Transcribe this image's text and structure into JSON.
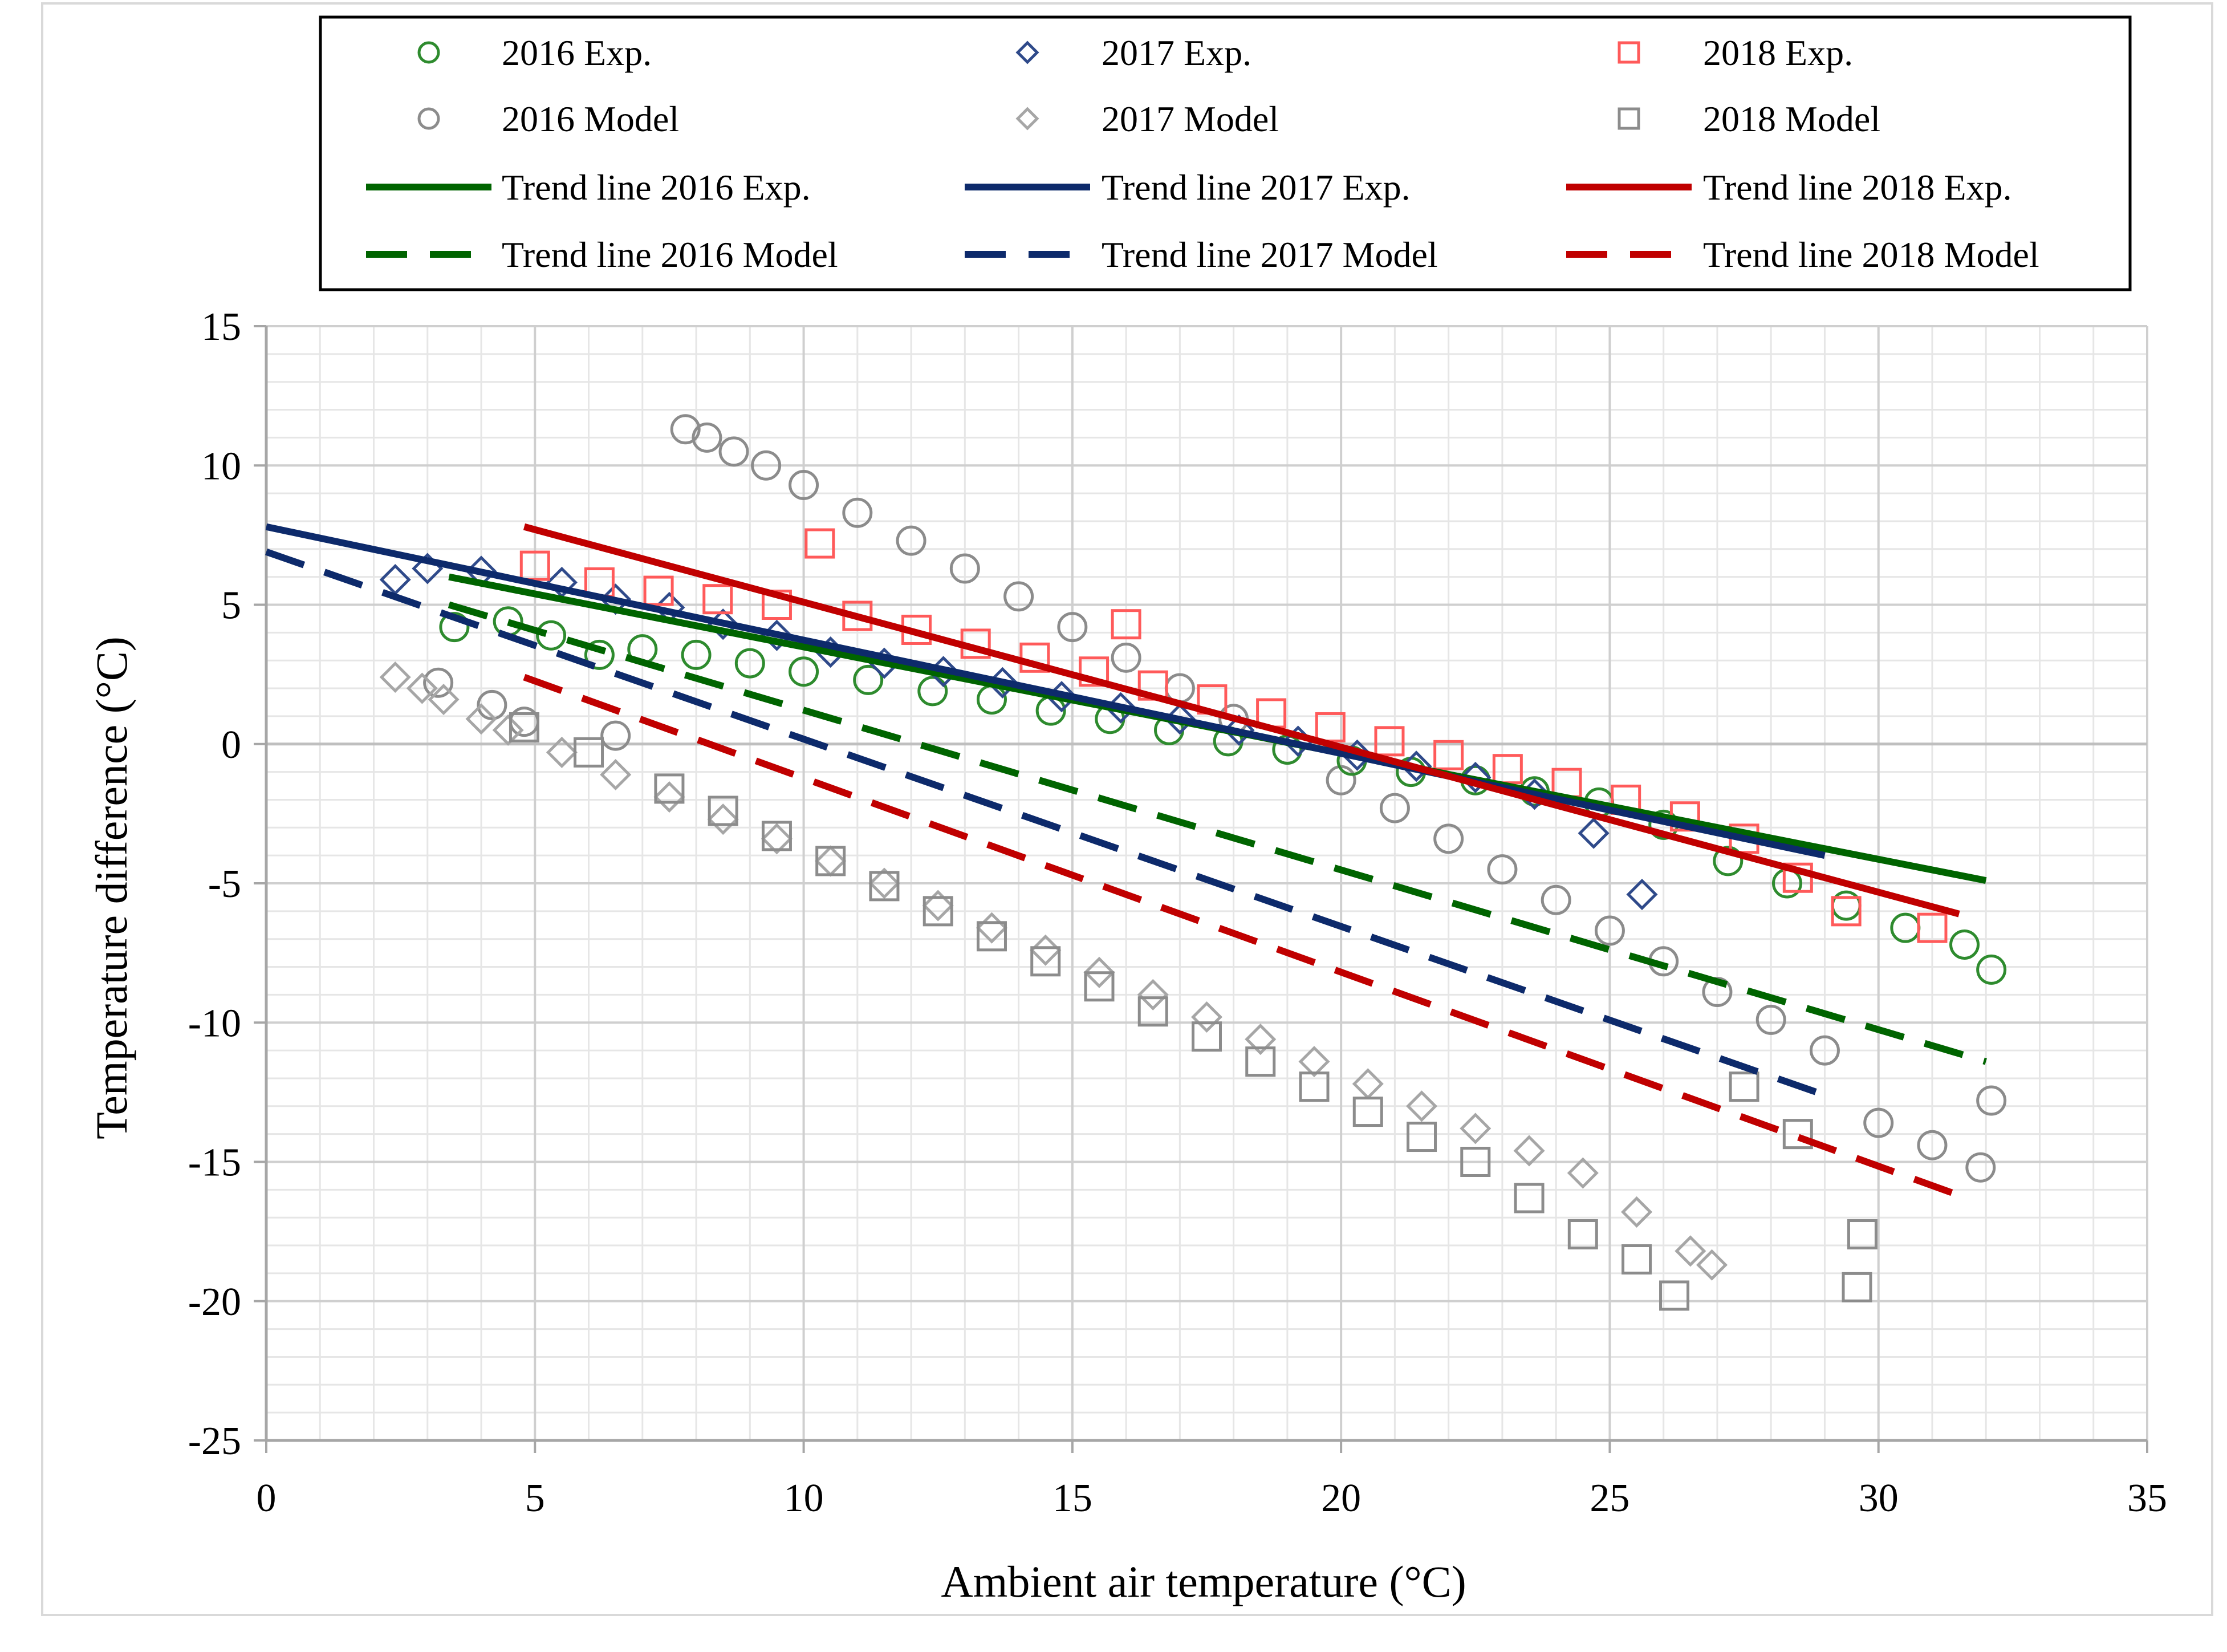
{
  "chart_data": {
    "type": "scatter",
    "title": "",
    "xlabel": "Ambient air temperature (°C)",
    "ylabel": "Temperature difference (°C)",
    "xlim": [
      0,
      35
    ],
    "ylim": [
      -25,
      15
    ],
    "x_ticks": [
      0,
      5,
      10,
      15,
      20,
      25,
      30,
      35
    ],
    "y_ticks": [
      15,
      10,
      5,
      0,
      -5,
      -10,
      -15,
      -20,
      -25
    ],
    "x_tick_labels": [
      "0",
      "5",
      "10",
      "15",
      "20",
      "25",
      "30",
      "35"
    ],
    "y_tick_labels": [
      "15",
      "10",
      "5",
      "0",
      "-5",
      "-10",
      "-15",
      "-20",
      "-25"
    ],
    "grid": true,
    "legend_position": "top",
    "series": [
      {
        "name": "2016 Exp.",
        "marker": "circle",
        "color": "#2e8b2e",
        "points": [
          [
            3.5,
            4.2
          ],
          [
            4.5,
            4.4
          ],
          [
            5.3,
            3.9
          ],
          [
            6.2,
            3.2
          ],
          [
            7.0,
            3.4
          ],
          [
            8.0,
            3.2
          ],
          [
            9.0,
            2.9
          ],
          [
            10.0,
            2.6
          ],
          [
            11.2,
            2.3
          ],
          [
            12.4,
            1.9
          ],
          [
            13.5,
            1.6
          ],
          [
            14.6,
            1.2
          ],
          [
            15.7,
            0.9
          ],
          [
            16.8,
            0.5
          ],
          [
            17.9,
            0.1
          ],
          [
            19.0,
            -0.2
          ],
          [
            20.2,
            -0.6
          ],
          [
            21.3,
            -1.0
          ],
          [
            22.5,
            -1.3
          ],
          [
            23.6,
            -1.7
          ],
          [
            24.8,
            -2.1
          ],
          [
            26.0,
            -2.9
          ],
          [
            27.2,
            -4.2
          ],
          [
            28.3,
            -5.0
          ],
          [
            29.4,
            -5.8
          ],
          [
            30.5,
            -6.6
          ],
          [
            31.6,
            -7.2
          ],
          [
            32.1,
            -8.1
          ]
        ]
      },
      {
        "name": "2017 Exp.",
        "marker": "diamond",
        "color": "#2f4a8a",
        "points": [
          [
            2.4,
            5.9
          ],
          [
            3.0,
            6.3
          ],
          [
            4.0,
            6.2
          ],
          [
            5.5,
            5.8
          ],
          [
            6.5,
            5.2
          ],
          [
            7.5,
            4.9
          ],
          [
            8.5,
            4.3
          ],
          [
            9.5,
            3.9
          ],
          [
            10.5,
            3.3
          ],
          [
            11.5,
            2.9
          ],
          [
            12.6,
            2.6
          ],
          [
            13.7,
            2.2
          ],
          [
            14.8,
            1.7
          ],
          [
            15.9,
            1.3
          ],
          [
            17.0,
            0.9
          ],
          [
            18.1,
            0.5
          ],
          [
            19.2,
            0.1
          ],
          [
            20.3,
            -0.4
          ],
          [
            21.4,
            -0.8
          ],
          [
            22.5,
            -1.2
          ],
          [
            23.6,
            -1.8
          ],
          [
            24.7,
            -3.2
          ],
          [
            25.6,
            -5.4
          ]
        ]
      },
      {
        "name": "2018 Exp.",
        "marker": "square",
        "color": "#ff5a5a",
        "points": [
          [
            5.0,
            6.4
          ],
          [
            6.2,
            5.8
          ],
          [
            7.3,
            5.5
          ],
          [
            8.4,
            5.2
          ],
          [
            9.5,
            5.0
          ],
          [
            10.3,
            7.2
          ],
          [
            11.0,
            4.6
          ],
          [
            12.1,
            4.1
          ],
          [
            13.2,
            3.6
          ],
          [
            14.3,
            3.1
          ],
          [
            15.4,
            2.6
          ],
          [
            16.0,
            4.3
          ],
          [
            16.5,
            2.1
          ],
          [
            17.6,
            1.6
          ],
          [
            18.7,
            1.1
          ],
          [
            19.8,
            0.6
          ],
          [
            20.9,
            0.1
          ],
          [
            22.0,
            -0.4
          ],
          [
            23.1,
            -0.9
          ],
          [
            24.2,
            -1.4
          ],
          [
            25.3,
            -2.0
          ],
          [
            26.4,
            -2.6
          ],
          [
            27.5,
            -3.4
          ],
          [
            28.5,
            -4.8
          ],
          [
            29.4,
            -6.0
          ],
          [
            31.0,
            -6.6
          ]
        ]
      },
      {
        "name": "2016 Model",
        "marker": "circle",
        "color": "#8c8c8c",
        "points": [
          [
            3.2,
            2.2
          ],
          [
            4.2,
            1.4
          ],
          [
            4.8,
            0.8
          ],
          [
            6.5,
            0.3
          ],
          [
            7.8,
            11.3
          ],
          [
            8.2,
            11.0
          ],
          [
            8.7,
            10.5
          ],
          [
            9.3,
            10.0
          ],
          [
            10.0,
            9.3
          ],
          [
            11.0,
            8.3
          ],
          [
            12.0,
            7.3
          ],
          [
            13.0,
            6.3
          ],
          [
            14.0,
            5.3
          ],
          [
            15.0,
            4.2
          ],
          [
            16.0,
            3.1
          ],
          [
            17.0,
            2.0
          ],
          [
            18.0,
            0.9
          ],
          [
            19.0,
            -0.2
          ],
          [
            20.0,
            -1.3
          ],
          [
            21.0,
            -2.3
          ],
          [
            22.0,
            -3.4
          ],
          [
            23.0,
            -4.5
          ],
          [
            24.0,
            -5.6
          ],
          [
            25.0,
            -6.7
          ],
          [
            26.0,
            -7.8
          ],
          [
            27.0,
            -8.9
          ],
          [
            28.0,
            -9.9
          ],
          [
            29.0,
            -11.0
          ],
          [
            30.0,
            -13.6
          ],
          [
            31.0,
            -14.4
          ],
          [
            31.9,
            -15.2
          ],
          [
            32.1,
            -12.8
          ]
        ]
      },
      {
        "name": "2017 Model",
        "marker": "diamond",
        "color": "#a6a6a6",
        "points": [
          [
            2.4,
            2.4
          ],
          [
            2.9,
            2.0
          ],
          [
            3.3,
            1.6
          ],
          [
            4.0,
            0.9
          ],
          [
            4.5,
            0.5
          ],
          [
            5.5,
            -0.3
          ],
          [
            6.5,
            -1.1
          ],
          [
            7.5,
            -1.9
          ],
          [
            8.5,
            -2.7
          ],
          [
            9.5,
            -3.4
          ],
          [
            10.5,
            -4.2
          ],
          [
            11.5,
            -5.0
          ],
          [
            12.5,
            -5.8
          ],
          [
            13.5,
            -6.6
          ],
          [
            14.5,
            -7.4
          ],
          [
            15.5,
            -8.2
          ],
          [
            16.5,
            -9.0
          ],
          [
            17.5,
            -9.8
          ],
          [
            18.5,
            -10.6
          ],
          [
            19.5,
            -11.4
          ],
          [
            20.5,
            -12.2
          ],
          [
            21.5,
            -13.0
          ],
          [
            22.5,
            -13.8
          ],
          [
            23.5,
            -14.6
          ],
          [
            24.5,
            -15.4
          ],
          [
            25.5,
            -16.8
          ],
          [
            26.5,
            -18.2
          ],
          [
            26.9,
            -18.7
          ]
        ]
      },
      {
        "name": "2018 Model",
        "marker": "square",
        "color": "#8c8c8c",
        "points": [
          [
            4.8,
            0.6
          ],
          [
            6.0,
            -0.3
          ],
          [
            7.5,
            -1.6
          ],
          [
            8.5,
            -2.4
          ],
          [
            9.5,
            -3.3
          ],
          [
            10.5,
            -4.2
          ],
          [
            11.5,
            -5.1
          ],
          [
            12.5,
            -6.0
          ],
          [
            13.5,
            -6.9
          ],
          [
            14.5,
            -7.8
          ],
          [
            15.5,
            -8.7
          ],
          [
            16.5,
            -9.6
          ],
          [
            17.5,
            -10.5
          ],
          [
            18.5,
            -11.4
          ],
          [
            19.5,
            -12.3
          ],
          [
            20.5,
            -13.2
          ],
          [
            21.5,
            -14.1
          ],
          [
            22.5,
            -15.0
          ],
          [
            23.5,
            -16.3
          ],
          [
            24.5,
            -17.6
          ],
          [
            25.5,
            -18.5
          ],
          [
            26.2,
            -19.8
          ],
          [
            27.5,
            -12.3
          ],
          [
            28.5,
            -14.0
          ],
          [
            29.6,
            -19.5
          ],
          [
            29.7,
            -17.6
          ]
        ]
      }
    ],
    "trend_lines": [
      {
        "name": "Trend line 2016 Exp.",
        "color": "#006400",
        "dash": false,
        "x": [
          3.4,
          32.0
        ],
        "y": [
          6.0,
          -4.9
        ]
      },
      {
        "name": "Trend line 2017 Exp.",
        "color": "#0d2a6b",
        "dash": false,
        "x": [
          0.0,
          29.0
        ],
        "y": [
          7.8,
          -4.0
        ]
      },
      {
        "name": "Trend line 2018 Exp.",
        "color": "#c00000",
        "dash": false,
        "x": [
          4.8,
          31.5
        ],
        "y": [
          7.8,
          -6.1
        ]
      },
      {
        "name": "Trend line 2016 Model",
        "color": "#006400",
        "dash": true,
        "x": [
          3.4,
          32.0
        ],
        "y": [
          5.0,
          -11.4
        ]
      },
      {
        "name": "Trend line 2017 Model",
        "color": "#0d2a6b",
        "dash": true,
        "x": [
          0.0,
          29.0
        ],
        "y": [
          6.9,
          -12.6
        ]
      },
      {
        "name": "Trend line 2018 Model",
        "color": "#c00000",
        "dash": true,
        "x": [
          4.8,
          31.5
        ],
        "y": [
          2.4,
          -16.2
        ]
      }
    ],
    "legend": {
      "marker_items": [
        {
          "label": "2016 Exp.",
          "marker": "circle",
          "color": "#2e8b2e"
        },
        {
          "label": "2017 Exp.",
          "marker": "diamond",
          "color": "#2f4a8a"
        },
        {
          "label": "2018 Exp.",
          "marker": "square",
          "color": "#ff5a5a"
        },
        {
          "label": "2016 Model",
          "marker": "circle",
          "color": "#8c8c8c"
        },
        {
          "label": "2017 Model",
          "marker": "diamond",
          "color": "#a6a6a6"
        },
        {
          "label": "2018 Model",
          "marker": "square",
          "color": "#8c8c8c"
        }
      ],
      "line_items": [
        {
          "label": "Trend line 2016 Exp.",
          "color": "#006400",
          "dash": false
        },
        {
          "label": "Trend line 2017 Exp.",
          "color": "#0d2a6b",
          "dash": false
        },
        {
          "label": "Trend line 2018 Exp.",
          "color": "#c00000",
          "dash": false
        },
        {
          "label": "Trend line 2016 Model",
          "color": "#006400",
          "dash": true
        },
        {
          "label": "Trend line 2017 Model",
          "color": "#0d2a6b",
          "dash": true
        },
        {
          "label": "Trend line 2018 Model",
          "color": "#c00000",
          "dash": true
        }
      ]
    }
  }
}
